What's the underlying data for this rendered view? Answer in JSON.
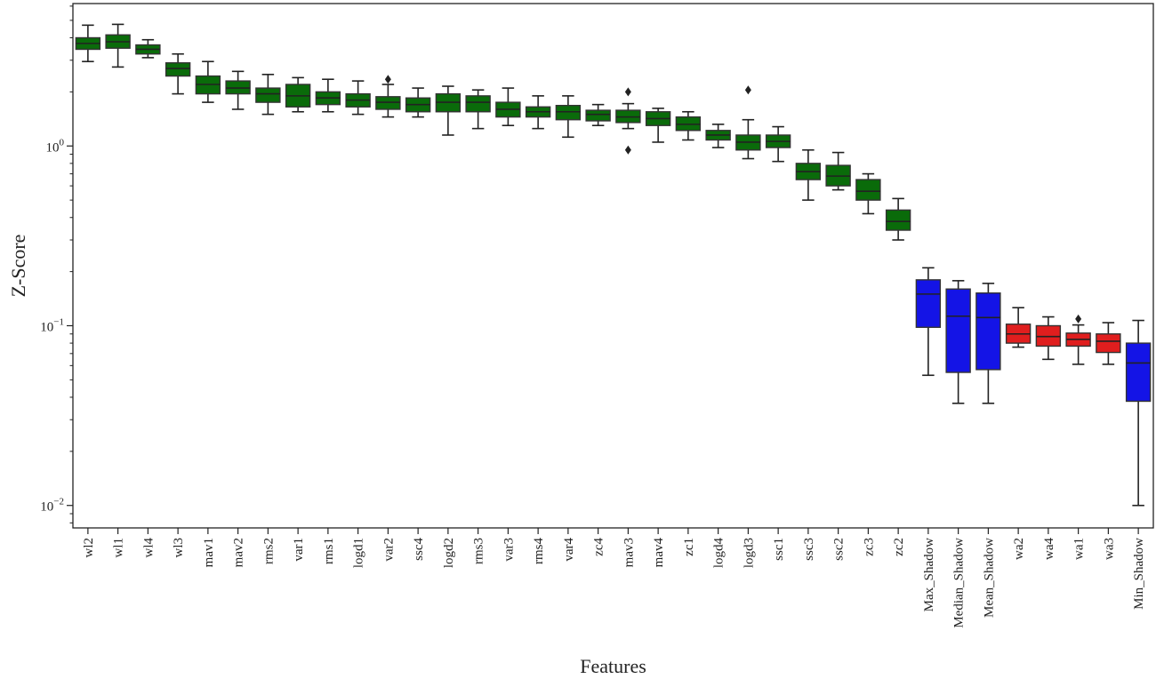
{
  "chart_data": {
    "type": "boxplot",
    "title": "",
    "xlabel": "Features",
    "ylabel": "Z-Score",
    "y_scale": "log",
    "ylim": [
      0.0075,
      6.2
    ],
    "y_ticks": [
      {
        "value": 0.01,
        "base": "10",
        "exp": "−2"
      },
      {
        "value": 0.1,
        "base": "10",
        "exp": "−1"
      },
      {
        "value": 1,
        "base": "10",
        "exp": "0"
      }
    ],
    "group_colors": {
      "green": "#0a6b0a",
      "blue": "#1414e6",
      "red": "#e01e1e"
    },
    "boxes": [
      {
        "name": "wl2",
        "color": "green",
        "whislo": 2.95,
        "q1": 3.45,
        "med": 3.72,
        "q3": 4.0,
        "whishi": 4.7,
        "fliers": []
      },
      {
        "name": "wl1",
        "color": "green",
        "whislo": 2.75,
        "q1": 3.5,
        "med": 3.8,
        "q3": 4.15,
        "whishi": 4.75,
        "fliers": []
      },
      {
        "name": "wl4",
        "color": "green",
        "whislo": 3.1,
        "q1": 3.25,
        "med": 3.45,
        "q3": 3.65,
        "whishi": 3.9,
        "fliers": []
      },
      {
        "name": "wl3",
        "color": "green",
        "whislo": 1.95,
        "q1": 2.45,
        "med": 2.7,
        "q3": 2.9,
        "whishi": 3.25,
        "fliers": []
      },
      {
        "name": "mav1",
        "color": "green",
        "whislo": 1.75,
        "q1": 1.95,
        "med": 2.2,
        "q3": 2.45,
        "whishi": 2.95,
        "fliers": []
      },
      {
        "name": "mav2",
        "color": "green",
        "whislo": 1.6,
        "q1": 1.95,
        "med": 2.1,
        "q3": 2.3,
        "whishi": 2.6,
        "fliers": []
      },
      {
        "name": "rms2",
        "color": "green",
        "whislo": 1.5,
        "q1": 1.75,
        "med": 1.95,
        "q3": 2.1,
        "whishi": 2.5,
        "fliers": []
      },
      {
        "name": "var1",
        "color": "green",
        "whislo": 1.55,
        "q1": 1.65,
        "med": 1.9,
        "q3": 2.2,
        "whishi": 2.4,
        "fliers": []
      },
      {
        "name": "rms1",
        "color": "green",
        "whislo": 1.55,
        "q1": 1.7,
        "med": 1.85,
        "q3": 2.0,
        "whishi": 2.35,
        "fliers": []
      },
      {
        "name": "logd1",
        "color": "green",
        "whislo": 1.5,
        "q1": 1.65,
        "med": 1.8,
        "q3": 1.95,
        "whishi": 2.3,
        "fliers": []
      },
      {
        "name": "var2",
        "color": "green",
        "whislo": 1.45,
        "q1": 1.6,
        "med": 1.75,
        "q3": 1.88,
        "whishi": 2.2,
        "fliers": [
          2.35
        ]
      },
      {
        "name": "ssc4",
        "color": "green",
        "whislo": 1.45,
        "q1": 1.55,
        "med": 1.7,
        "q3": 1.85,
        "whishi": 2.1,
        "fliers": []
      },
      {
        "name": "logd2",
        "color": "green",
        "whislo": 1.15,
        "q1": 1.55,
        "med": 1.75,
        "q3": 1.95,
        "whishi": 2.15,
        "fliers": []
      },
      {
        "name": "rms3",
        "color": "green",
        "whislo": 1.25,
        "q1": 1.55,
        "med": 1.75,
        "q3": 1.9,
        "whishi": 2.05,
        "fliers": []
      },
      {
        "name": "var3",
        "color": "green",
        "whislo": 1.3,
        "q1": 1.45,
        "med": 1.6,
        "q3": 1.75,
        "whishi": 2.1,
        "fliers": []
      },
      {
        "name": "rms4",
        "color": "green",
        "whislo": 1.25,
        "q1": 1.45,
        "med": 1.55,
        "q3": 1.65,
        "whishi": 1.9,
        "fliers": []
      },
      {
        "name": "var4",
        "color": "green",
        "whislo": 1.12,
        "q1": 1.4,
        "med": 1.55,
        "q3": 1.68,
        "whishi": 1.9,
        "fliers": []
      },
      {
        "name": "zc4",
        "color": "green",
        "whislo": 1.3,
        "q1": 1.38,
        "med": 1.5,
        "q3": 1.58,
        "whishi": 1.7,
        "fliers": []
      },
      {
        "name": "mav3",
        "color": "green",
        "whislo": 1.25,
        "q1": 1.35,
        "med": 1.45,
        "q3": 1.58,
        "whishi": 1.72,
        "fliers": [
          0.95,
          2.0
        ]
      },
      {
        "name": "mav4",
        "color": "green",
        "whislo": 1.05,
        "q1": 1.3,
        "med": 1.42,
        "q3": 1.55,
        "whishi": 1.62,
        "fliers": []
      },
      {
        "name": "zc1",
        "color": "green",
        "whislo": 1.08,
        "q1": 1.22,
        "med": 1.32,
        "q3": 1.45,
        "whishi": 1.55,
        "fliers": []
      },
      {
        "name": "logd4",
        "color": "green",
        "whislo": 0.98,
        "q1": 1.08,
        "med": 1.15,
        "q3": 1.22,
        "whishi": 1.32,
        "fliers": []
      },
      {
        "name": "logd3",
        "color": "green",
        "whislo": 0.85,
        "q1": 0.95,
        "med": 1.05,
        "q3": 1.15,
        "whishi": 1.4,
        "fliers": [
          2.05
        ]
      },
      {
        "name": "ssc1",
        "color": "green",
        "whislo": 0.82,
        "q1": 0.98,
        "med": 1.06,
        "q3": 1.15,
        "whishi": 1.28,
        "fliers": []
      },
      {
        "name": "ssc3",
        "color": "green",
        "whislo": 0.5,
        "q1": 0.65,
        "med": 0.72,
        "q3": 0.8,
        "whishi": 0.95,
        "fliers": []
      },
      {
        "name": "ssc2",
        "color": "green",
        "whislo": 0.57,
        "q1": 0.6,
        "med": 0.68,
        "q3": 0.78,
        "whishi": 0.92,
        "fliers": []
      },
      {
        "name": "zc3",
        "color": "green",
        "whislo": 0.42,
        "q1": 0.5,
        "med": 0.56,
        "q3": 0.65,
        "whishi": 0.7,
        "fliers": []
      },
      {
        "name": "zc2",
        "color": "green",
        "whislo": 0.3,
        "q1": 0.34,
        "med": 0.38,
        "q3": 0.44,
        "whishi": 0.51,
        "fliers": []
      },
      {
        "name": "Max_Shadow",
        "color": "blue",
        "whislo": 0.053,
        "q1": 0.098,
        "med": 0.15,
        "q3": 0.18,
        "whishi": 0.21,
        "fliers": []
      },
      {
        "name": "Median_Shadow",
        "color": "blue",
        "whislo": 0.037,
        "q1": 0.055,
        "med": 0.113,
        "q3": 0.16,
        "whishi": 0.178,
        "fliers": []
      },
      {
        "name": "Mean_Shadow",
        "color": "blue",
        "whislo": 0.037,
        "q1": 0.057,
        "med": 0.111,
        "q3": 0.152,
        "whishi": 0.172,
        "fliers": []
      },
      {
        "name": "wa2",
        "color": "red",
        "whislo": 0.076,
        "q1": 0.08,
        "med": 0.09,
        "q3": 0.102,
        "whishi": 0.126,
        "fliers": []
      },
      {
        "name": "wa4",
        "color": "red",
        "whislo": 0.065,
        "q1": 0.077,
        "med": 0.087,
        "q3": 0.1,
        "whishi": 0.112,
        "fliers": []
      },
      {
        "name": "wa1",
        "color": "red",
        "whislo": 0.061,
        "q1": 0.077,
        "med": 0.084,
        "q3": 0.091,
        "whishi": 0.101,
        "fliers": [
          0.109
        ]
      },
      {
        "name": "wa3",
        "color": "red",
        "whislo": 0.061,
        "q1": 0.071,
        "med": 0.082,
        "q3": 0.09,
        "whishi": 0.104,
        "fliers": []
      },
      {
        "name": "Min_Shadow",
        "color": "blue",
        "whislo": 0.01,
        "q1": 0.038,
        "med": 0.062,
        "q3": 0.08,
        "whishi": 0.107,
        "fliers": []
      }
    ]
  }
}
